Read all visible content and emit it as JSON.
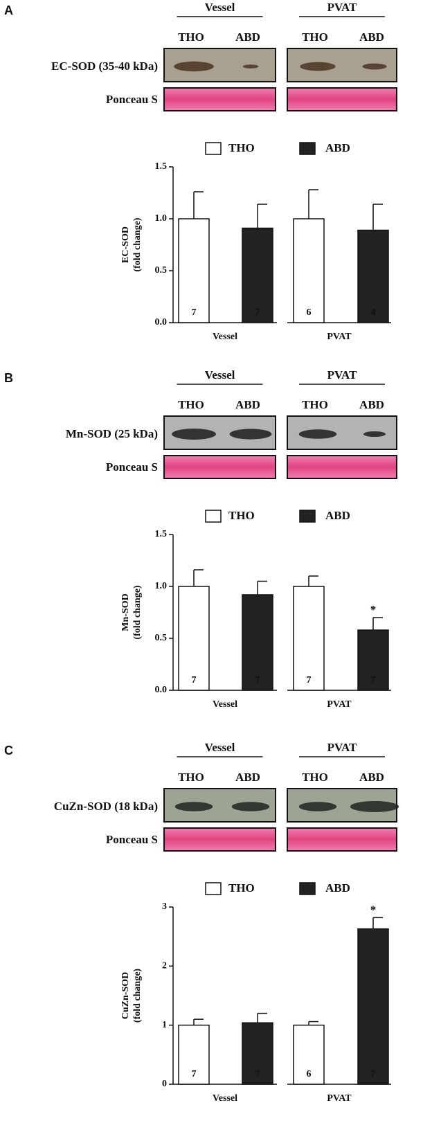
{
  "panels": [
    {
      "letter": "A",
      "blot": {
        "groups": [
          "Vessel",
          "PVAT"
        ],
        "lanes": [
          "THO",
          "ABD",
          "THO",
          "ABD"
        ],
        "protein": "EC-SOD  (35-40 kDa)",
        "loading": "Ponceau S"
      }
    },
    {
      "letter": "B",
      "blot": {
        "groups": [
          "Vessel",
          "PVAT"
        ],
        "lanes": [
          "THO",
          "ABD",
          "THO",
          "ABD"
        ],
        "protein": "Mn-SOD  (25 kDa)",
        "loading": "Ponceau S"
      }
    },
    {
      "letter": "C",
      "blot": {
        "groups": [
          "Vessel",
          "PVAT"
        ],
        "lanes": [
          "THO",
          "ABD",
          "THO",
          "ABD"
        ],
        "protein": "CuZn-SOD (18 kDa)",
        "loading": "Ponceau S"
      }
    }
  ],
  "chart_data": [
    {
      "type": "bar",
      "ylabel": [
        "EC-SOD",
        "(fold change)"
      ],
      "categories": [
        "Vessel",
        "PVAT"
      ],
      "series": [
        {
          "name": "THO",
          "color": "#ffffff",
          "values": [
            1.0,
            1.0
          ],
          "errors": [
            0.26,
            0.28
          ],
          "n": [
            7,
            6
          ]
        },
        {
          "name": "ABD",
          "color": "#222222",
          "values": [
            0.91,
            0.89
          ],
          "errors": [
            0.23,
            0.25
          ],
          "n": [
            7,
            4
          ]
        }
      ],
      "ylim": [
        0,
        1.5
      ],
      "yticks": [
        {
          "value": 0,
          "label": "0.0"
        },
        {
          "value": 0.5,
          "label": "0.5"
        },
        {
          "value": 1,
          "label": "1.0"
        },
        {
          "value": 1.5,
          "label": "1.5"
        }
      ]
    },
    {
      "type": "bar",
      "ylabel": [
        "Mn-SOD",
        "(fold change)"
      ],
      "categories": [
        "Vessel",
        "PVAT"
      ],
      "series": [
        {
          "name": "THO",
          "color": "#ffffff",
          "values": [
            1.0,
            1.0
          ],
          "errors": [
            0.16,
            0.1
          ],
          "n": [
            7,
            7
          ]
        },
        {
          "name": "ABD",
          "color": "#222222",
          "values": [
            0.92,
            0.58
          ],
          "errors": [
            0.13,
            0.12
          ],
          "n": [
            7,
            7
          ],
          "significance": [
            null,
            "*"
          ]
        }
      ],
      "ylim": [
        0,
        1.5
      ],
      "yticks": [
        {
          "value": 0,
          "label": "0.0"
        },
        {
          "value": 0.5,
          "label": "0.5"
        },
        {
          "value": 1,
          "label": "1.0"
        },
        {
          "value": 1.5,
          "label": "1.5"
        }
      ]
    },
    {
      "type": "bar",
      "ylabel": [
        "CuZn-SOD",
        "(fold change)"
      ],
      "categories": [
        "Vessel",
        "PVAT"
      ],
      "series": [
        {
          "name": "THO",
          "color": "#ffffff",
          "values": [
            1.0,
            1.0
          ],
          "errors": [
            0.1,
            0.06
          ],
          "n": [
            7,
            6
          ]
        },
        {
          "name": "ABD",
          "color": "#222222",
          "values": [
            1.04,
            2.63
          ],
          "errors": [
            0.16,
            0.19
          ],
          "n": [
            7,
            7
          ],
          "significance": [
            null,
            "*"
          ]
        }
      ],
      "ylim": [
        0,
        3
      ],
      "yticks": [
        0,
        1,
        2,
        3
      ]
    }
  ]
}
